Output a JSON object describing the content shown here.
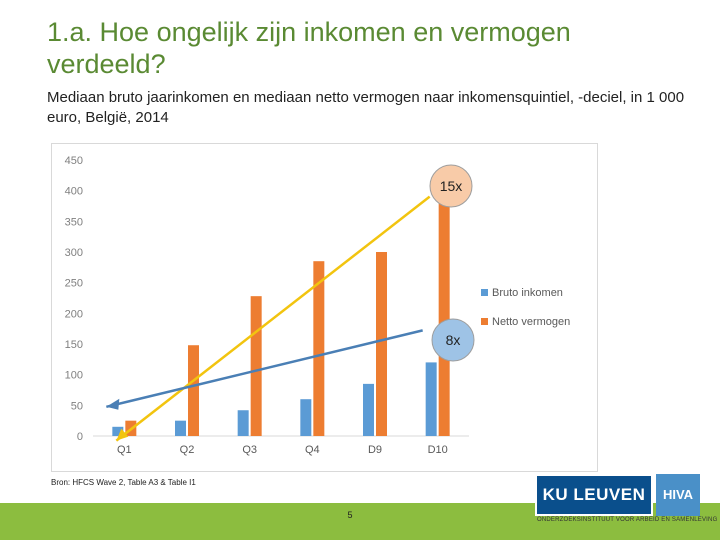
{
  "slide": {
    "title": "1.a. Hoe ongelijk zijn inkomen en vermogen verdeeld?",
    "subtitle": "Mediaan bruto jaarinkomen en mediaan netto vermogen naar inkomensquintiel, -deciel, in 1 000 euro, België, 2014",
    "source": "Bron: HFCS Wave 2, Table A3 & Table I1",
    "page_number": "5"
  },
  "logo": {
    "name": "KU LEUVEN",
    "partner": "HIVA",
    "tagline": "ONDERZOEKSINSTITUUT VOOR ARBEID EN SAMENLEVING"
  },
  "chart_data": {
    "type": "bar",
    "categories": [
      "Q1",
      "Q2",
      "Q3",
      "Q4",
      "D9",
      "D10"
    ],
    "series": [
      {
        "name": "Bruto inkomen",
        "values": [
          15,
          25,
          42,
          60,
          85,
          120
        ],
        "color": "#5b9bd5"
      },
      {
        "name": "Netto vermogen",
        "values": [
          25,
          148,
          228,
          285,
          300,
          400
        ],
        "color": "#ed7d31"
      }
    ],
    "ylim": [
      0,
      450
    ],
    "yticks": [
      0,
      50,
      100,
      150,
      200,
      250,
      300,
      350,
      400,
      450
    ],
    "grid": false,
    "legend": "right",
    "annotations": [
      {
        "label": "15x",
        "series": "Netto vermogen",
        "fill": "#f8cba8"
      },
      {
        "label": "8x",
        "series": "Bruto inkomen",
        "fill": "#9ec3e6"
      }
    ]
  }
}
